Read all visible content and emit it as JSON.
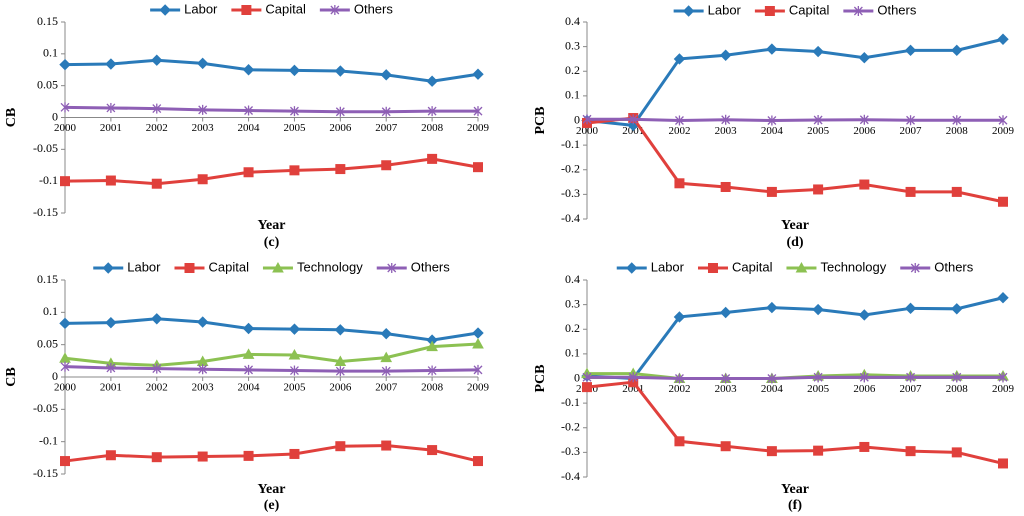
{
  "chart_data": [
    {
      "type": "line",
      "label": "(c)",
      "x_label": "Year",
      "y_label": "CB",
      "categories": [
        "2000",
        "2001",
        "2002",
        "2003",
        "2004",
        "2005",
        "2006",
        "2007",
        "2008",
        "2009"
      ],
      "ylim": [
        -0.15,
        0.15
      ],
      "yticks": [
        0.15,
        0.1,
        0.05,
        0,
        -0.05,
        -0.1,
        -0.15
      ],
      "series": [
        {
          "name": "Labor",
          "color": "#2a7ab9",
          "marker": "diamond",
          "values": [
            0.083,
            0.084,
            0.09,
            0.085,
            0.075,
            0.074,
            0.073,
            0.067,
            0.057,
            0.068
          ]
        },
        {
          "name": "Capital",
          "color": "#e0403c",
          "marker": "square",
          "values": [
            -0.1,
            -0.099,
            -0.104,
            -0.097,
            -0.086,
            -0.083,
            -0.081,
            -0.075,
            -0.065,
            -0.078
          ]
        },
        {
          "name": "Others",
          "color": "#8e5fb5",
          "marker": "star",
          "values": [
            0.016,
            0.015,
            0.014,
            0.012,
            0.011,
            0.01,
            0.009,
            0.009,
            0.01,
            0.01
          ]
        }
      ]
    },
    {
      "type": "line",
      "label": "(d)",
      "x_label": "Year",
      "y_label": "PCB",
      "categories": [
        "2000",
        "2001",
        "2002",
        "2003",
        "2004",
        "2005",
        "2006",
        "2007",
        "2008",
        "2009"
      ],
      "ylim": [
        -0.4,
        0.4
      ],
      "yticks": [
        0.4,
        0.3,
        0.2,
        0.1,
        0,
        -0.1,
        -0.2,
        -0.3,
        -0.4
      ],
      "series": [
        {
          "name": "Labor",
          "color": "#2a7ab9",
          "marker": "diamond",
          "values": [
            0.0,
            -0.02,
            0.25,
            0.265,
            0.29,
            0.28,
            0.255,
            0.285,
            0.285,
            0.33
          ]
        },
        {
          "name": "Capital",
          "color": "#e0403c",
          "marker": "square",
          "values": [
            -0.01,
            0.01,
            -0.255,
            -0.27,
            -0.29,
            -0.28,
            -0.26,
            -0.29,
            -0.29,
            -0.33
          ]
        },
        {
          "name": "Others",
          "color": "#8e5fb5",
          "marker": "star",
          "values": [
            0.005,
            0.005,
            0.0,
            0.003,
            0.0,
            0.002,
            0.003,
            0.001,
            0.001,
            0.001
          ]
        }
      ]
    },
    {
      "type": "line",
      "label": "(e)",
      "x_label": "Year",
      "y_label": "CB",
      "categories": [
        "2000",
        "2001",
        "2002",
        "2003",
        "2004",
        "2005",
        "2006",
        "2007",
        "2008",
        "2009"
      ],
      "ylim": [
        -0.15,
        0.15
      ],
      "yticks": [
        0.15,
        0.1,
        0.05,
        0,
        -0.05,
        -0.1,
        -0.15
      ],
      "series": [
        {
          "name": "Labor",
          "color": "#2a7ab9",
          "marker": "diamond",
          "values": [
            0.083,
            0.084,
            0.09,
            0.085,
            0.075,
            0.074,
            0.073,
            0.067,
            0.057,
            0.068
          ]
        },
        {
          "name": "Capital",
          "color": "#e0403c",
          "marker": "square",
          "values": [
            -0.13,
            -0.121,
            -0.124,
            -0.123,
            -0.122,
            -0.119,
            -0.107,
            -0.106,
            -0.113,
            -0.13
          ]
        },
        {
          "name": "Technology",
          "color": "#8cc152",
          "marker": "triangle",
          "values": [
            0.029,
            0.021,
            0.018,
            0.024,
            0.035,
            0.034,
            0.024,
            0.03,
            0.047,
            0.051
          ]
        },
        {
          "name": "Others",
          "color": "#8e5fb5",
          "marker": "star",
          "values": [
            0.016,
            0.014,
            0.013,
            0.012,
            0.011,
            0.01,
            0.009,
            0.009,
            0.01,
            0.011
          ]
        }
      ]
    },
    {
      "type": "line",
      "label": "(f)",
      "x_label": "Year",
      "y_label": "PCB",
      "categories": [
        "2000",
        "2001",
        "2002",
        "2003",
        "2004",
        "2005",
        "2006",
        "2007",
        "2008",
        "2009"
      ],
      "ylim": [
        -0.4,
        0.4
      ],
      "yticks": [
        0.4,
        0.3,
        0.2,
        0.1,
        0,
        -0.1,
        -0.2,
        -0.3,
        -0.4
      ],
      "series": [
        {
          "name": "Labor",
          "color": "#2a7ab9",
          "marker": "diamond",
          "values": [
            0.01,
            0.0,
            0.25,
            0.268,
            0.288,
            0.28,
            0.258,
            0.285,
            0.283,
            0.328
          ]
        },
        {
          "name": "Capital",
          "color": "#e0403c",
          "marker": "square",
          "values": [
            -0.035,
            -0.015,
            -0.255,
            -0.275,
            -0.295,
            -0.293,
            -0.278,
            -0.295,
            -0.3,
            -0.345
          ]
        },
        {
          "name": "Technology",
          "color": "#8cc152",
          "marker": "triangle",
          "values": [
            0.02,
            0.02,
            0.0,
            0.0,
            0.0,
            0.01,
            0.015,
            0.01,
            0.01,
            0.01
          ]
        },
        {
          "name": "Others",
          "color": "#8e5fb5",
          "marker": "star",
          "values": [
            0.005,
            0.005,
            0.0,
            0.0,
            0.0,
            0.005,
            0.005,
            0.005,
            0.005,
            0.005
          ]
        }
      ]
    }
  ]
}
